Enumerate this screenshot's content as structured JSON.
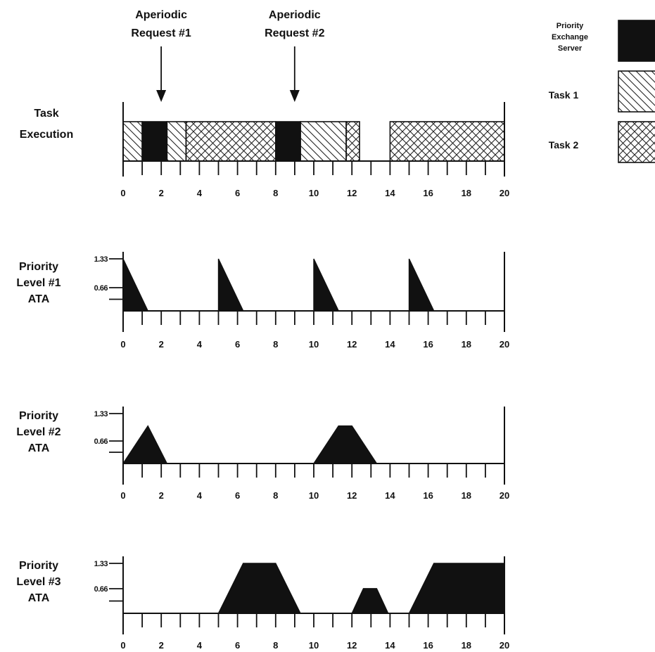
{
  "chart_data": [
    {
      "type": "gantt",
      "row_label": [
        "Task",
        "Execution"
      ],
      "x_ticks": [
        0,
        2,
        4,
        6,
        8,
        10,
        12,
        14,
        16,
        18,
        20
      ],
      "xlim": [
        0,
        20
      ],
      "annotations": [
        {
          "label": [
            "Aperiodic",
            "Request #1"
          ],
          "x": 1
        },
        {
          "label": [
            "Aperiodic",
            "Request #2"
          ],
          "x": 8
        }
      ],
      "segments": [
        {
          "start": 0,
          "end": 1,
          "task": "task1"
        },
        {
          "start": 1,
          "end": 2.3,
          "task": "server"
        },
        {
          "start": 2.3,
          "end": 3.3,
          "task": "task1"
        },
        {
          "start": 3.3,
          "end": 8,
          "task": "task2"
        },
        {
          "start": 8,
          "end": 9.3,
          "task": "server"
        },
        {
          "start": 9.3,
          "end": 11.7,
          "task": "task1"
        },
        {
          "start": 11.7,
          "end": 12.4,
          "task": "task2"
        },
        {
          "start": 14,
          "end": 20,
          "task": "task2"
        }
      ]
    },
    {
      "type": "area",
      "row_label": [
        "Priority",
        "Level #1",
        "ATA"
      ],
      "y_ticks": [
        "1.33",
        "0.66"
      ],
      "ylim": [
        0,
        1.33
      ],
      "x_ticks": [
        0,
        2,
        4,
        6,
        8,
        10,
        12,
        14,
        16,
        18,
        20
      ],
      "xlim": [
        0,
        20
      ],
      "polygons": [
        [
          [
            0,
            0
          ],
          [
            0,
            1.33
          ],
          [
            1.3,
            0
          ]
        ],
        [
          [
            5,
            0
          ],
          [
            5,
            1.33
          ],
          [
            6.3,
            0
          ]
        ],
        [
          [
            10,
            0
          ],
          [
            10,
            1.33
          ],
          [
            11.3,
            0
          ]
        ],
        [
          [
            15,
            0
          ],
          [
            15,
            1.33
          ],
          [
            16.3,
            0
          ]
        ]
      ]
    },
    {
      "type": "area",
      "row_label": [
        "Priority",
        "Level #2",
        "ATA"
      ],
      "y_ticks": [
        "1.33",
        "0.66"
      ],
      "ylim": [
        0,
        1.33
      ],
      "x_ticks": [
        0,
        2,
        4,
        6,
        8,
        10,
        12,
        14,
        16,
        18,
        20
      ],
      "xlim": [
        0,
        20
      ],
      "polygons": [
        [
          [
            0,
            0
          ],
          [
            1.3,
            1.0
          ],
          [
            2.3,
            0
          ]
        ],
        [
          [
            10,
            0
          ],
          [
            11.3,
            1.0
          ],
          [
            12,
            1.0
          ],
          [
            13.3,
            0
          ]
        ]
      ]
    },
    {
      "type": "area",
      "row_label": [
        "Priority",
        "Level #3",
        "ATA"
      ],
      "y_ticks": [
        "1.33",
        "0.66"
      ],
      "ylim": [
        0,
        1.33
      ],
      "x_ticks": [
        0,
        2,
        4,
        6,
        8,
        10,
        12,
        14,
        16,
        18,
        20
      ],
      "xlim": [
        0,
        20
      ],
      "polygons": [
        [
          [
            5,
            0
          ],
          [
            6.3,
            1.33
          ],
          [
            8,
            1.33
          ],
          [
            9.3,
            0
          ]
        ],
        [
          [
            12,
            0
          ],
          [
            12.6,
            0.66
          ],
          [
            13.3,
            0.66
          ],
          [
            13.9,
            0
          ]
        ],
        [
          [
            15,
            0
          ],
          [
            16.3,
            1.33
          ],
          [
            20,
            1.33
          ],
          [
            20,
            0
          ]
        ]
      ]
    }
  ],
  "legend": [
    {
      "label": [
        "Priority",
        "Exchange",
        "Server"
      ],
      "pattern": "solid"
    },
    {
      "label": [
        "Task 1"
      ],
      "pattern": "diagonal"
    },
    {
      "label": [
        "Task 2"
      ],
      "pattern": "crosshatch"
    }
  ]
}
